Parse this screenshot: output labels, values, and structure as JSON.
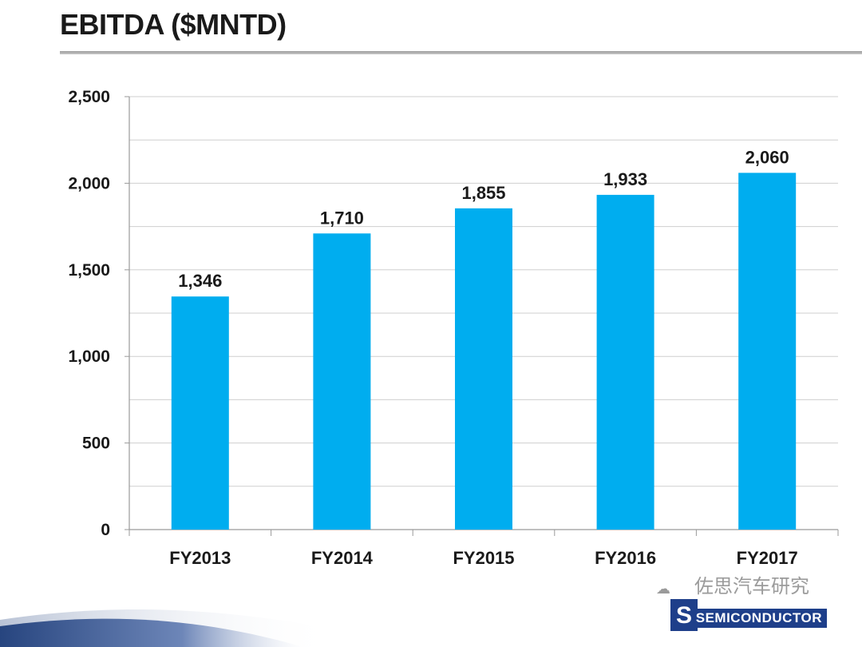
{
  "title": "EBITDA ($MNTD)",
  "chart_data": {
    "type": "bar",
    "title": "EBITDA ($MNTD)",
    "categories": [
      "FY2013",
      "FY2014",
      "FY2015",
      "FY2016",
      "FY2017"
    ],
    "values": [
      1346,
      1710,
      1855,
      1933,
      2060
    ],
    "value_labels": [
      "1,346",
      "1,710",
      "1,855",
      "1,933",
      "2,060"
    ],
    "ylim": [
      0,
      2500
    ],
    "yticks": [
      0,
      500,
      1000,
      1500,
      2000,
      2500
    ],
    "ytick_labels": [
      "0",
      "500",
      "1,000",
      "1,500",
      "2,000",
      "2,500"
    ],
    "minor_gridline_step": 250,
    "grid": true,
    "legend": "none",
    "bar_color": "#00adef",
    "xlabel": "",
    "ylabel": ""
  },
  "watermark": {
    "chinese_text": "佐思汽车研究",
    "brand": "SEMICONDUCTOR"
  }
}
